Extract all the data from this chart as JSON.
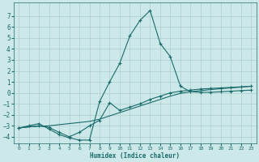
{
  "xlabel": "Humidex (Indice chaleur)",
  "bg_color": "#cce8e8",
  "grid_color": "#aacfcf",
  "line_color": "#1a6b6b",
  "xlim": [
    -0.5,
    23.5
  ],
  "ylim": [
    -4.6,
    8.2
  ],
  "yticks": [
    -4,
    -3,
    -2,
    -1,
    0,
    1,
    2,
    3,
    4,
    5,
    6,
    7
  ],
  "xticks": [
    0,
    1,
    2,
    3,
    4,
    5,
    6,
    7,
    8,
    9,
    10,
    11,
    12,
    13,
    14,
    15,
    16,
    17,
    18,
    19,
    20,
    21,
    22,
    23
  ],
  "line1_x": [
    0,
    1,
    2,
    3,
    4,
    5,
    6,
    7,
    8,
    9,
    10,
    11,
    12,
    13,
    14,
    15,
    16,
    17,
    18,
    19,
    20,
    21,
    22,
    23
  ],
  "line1_y": [
    -3.2,
    -3.0,
    -2.8,
    -3.3,
    -3.8,
    -4.1,
    -4.3,
    -4.3,
    -0.8,
    1.0,
    2.7,
    5.2,
    6.6,
    7.5,
    4.5,
    3.3,
    0.6,
    0.1,
    0.05,
    0.05,
    0.1,
    0.15,
    0.2,
    0.25
  ],
  "line2_x": [
    0,
    2,
    3,
    4,
    5,
    6,
    7,
    8,
    9,
    10,
    11,
    12,
    13,
    14,
    15,
    16,
    17,
    18,
    19,
    20,
    21,
    22,
    23
  ],
  "line2_y": [
    -3.2,
    -3.0,
    -3.15,
    -3.6,
    -4.0,
    -3.6,
    -3.0,
    -2.5,
    -0.9,
    -1.6,
    -1.3,
    -1.0,
    -0.6,
    -0.3,
    0.0,
    0.15,
    0.25,
    0.35,
    0.4,
    0.45,
    0.5,
    0.55,
    0.6
  ],
  "line3_x": [
    0,
    1,
    2,
    3,
    4,
    5,
    6,
    7,
    8,
    9,
    10,
    11,
    12,
    13,
    14,
    15,
    16,
    17,
    18,
    19,
    20,
    21,
    22,
    23
  ],
  "line3_y": [
    -3.2,
    -3.1,
    -3.05,
    -3.0,
    -2.9,
    -2.8,
    -2.7,
    -2.6,
    -2.4,
    -2.1,
    -1.8,
    -1.5,
    -1.2,
    -0.9,
    -0.6,
    -0.3,
    -0.05,
    0.1,
    0.2,
    0.3,
    0.38,
    0.45,
    0.52,
    0.6
  ]
}
